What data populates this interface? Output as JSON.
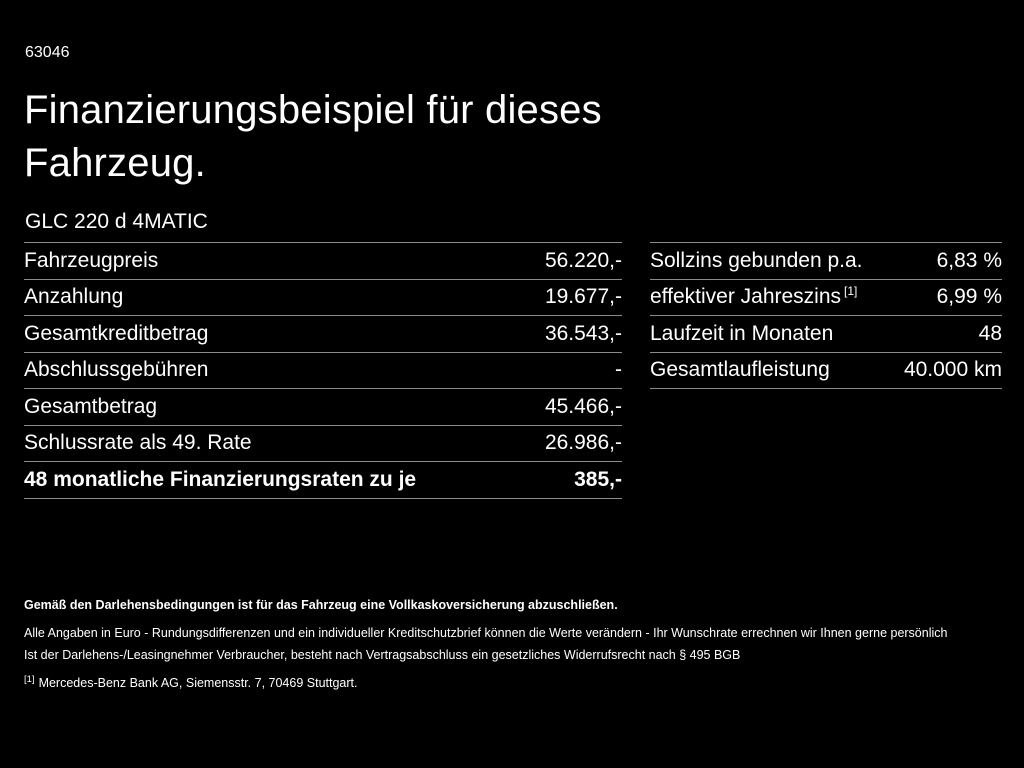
{
  "page": {
    "doc_number": "63046",
    "title": "Finanzierungsbeispiel für dieses Fahrzeug.",
    "model": "GLC 220 d 4MATIC"
  },
  "colors": {
    "background": "#000000",
    "text": "#ffffff",
    "divider": "#8c8c8c"
  },
  "finance_table": {
    "rows": [
      {
        "label": "Fahrzeugpreis",
        "value": "56.220,-"
      },
      {
        "label": "Anzahlung",
        "value": "19.677,-"
      },
      {
        "label": "Gesamtkreditbetrag",
        "value": "36.543,-"
      },
      {
        "label": "Abschlussgebühren",
        "value": "-"
      },
      {
        "label": "Gesamtbetrag",
        "value": "45.466,-"
      },
      {
        "label": "Schlussrate als 49. Rate",
        "value": "26.986,-"
      },
      {
        "label": "48 monatliche Finanzierungsraten zu je",
        "value": "385,-"
      }
    ]
  },
  "conditions_table": {
    "rows": [
      {
        "label": "Sollzins gebunden p.a.",
        "value": "6,83 %"
      },
      {
        "label": "effektiver Jahreszins",
        "sup": "[1]",
        "value": "6,99 %"
      },
      {
        "label": "Laufzeit in Monaten",
        "value": "48"
      },
      {
        "label": "Gesamtlaufleistung",
        "value": "40.000 km"
      }
    ]
  },
  "footnotes": {
    "insurance": "Gemäß den Darlehensbedingungen ist für das Fahrzeug eine Vollkaskoversicherung abzuschließen.",
    "disclaimer1": "Alle Angaben in Euro - Rundungsdifferenzen und ein individueller Kreditschutzbrief können die Werte verändern - Ihr Wunschrate errechnen wir Ihnen gerne persönlich",
    "disclaimer2": "Ist der Darlehens-/Leasingnehmer Verbraucher, besteht nach Vertragsabschluss ein gesetzliches Widerrufsrecht nach § 495 BGB",
    "ref_marker": "[1]",
    "ref_text": "Mercedes-Benz Bank AG, Siemensstr. 7, 70469 Stuttgart."
  }
}
